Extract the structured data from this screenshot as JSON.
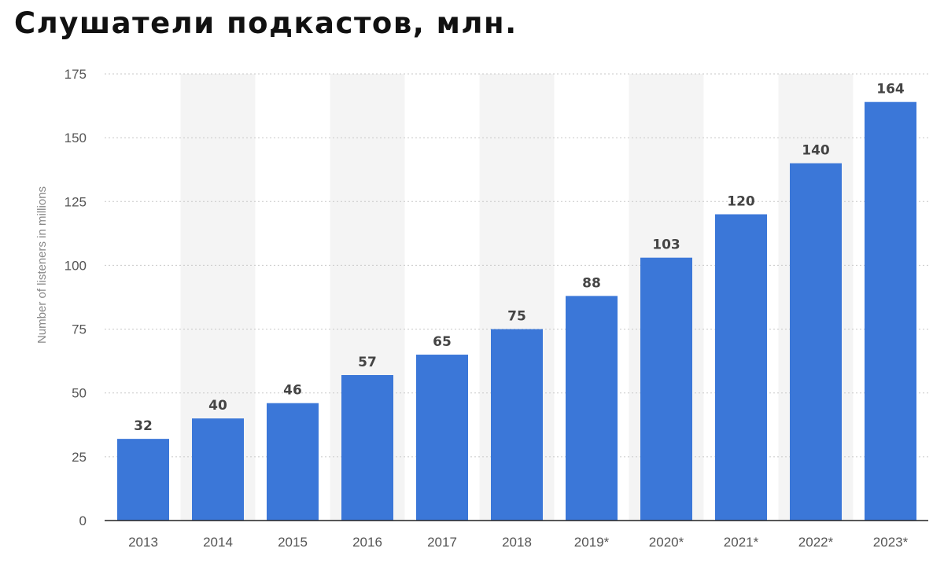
{
  "title": "Слушатели подкастов, млн.",
  "chart_data": {
    "type": "bar",
    "title": "Слушатели подкастов, млн.",
    "xlabel": "",
    "ylabel": "Number of listeners in millions",
    "categories": [
      "2013",
      "2014",
      "2015",
      "2016",
      "2017",
      "2018",
      "2019*",
      "2020*",
      "2021*",
      "2022*",
      "2023*"
    ],
    "values": [
      32,
      40,
      46,
      57,
      65,
      75,
      88,
      103,
      120,
      140,
      164
    ],
    "data_labels": [
      "32",
      "40",
      "46",
      "57",
      "65",
      "75",
      "88",
      "103",
      "120",
      "140",
      "164"
    ],
    "ylim": [
      0,
      175
    ],
    "yticks": [
      0,
      25,
      50,
      75,
      100,
      125,
      150,
      175
    ],
    "grid": true,
    "legend": "none",
    "colors": {
      "bar": "#3b77d8",
      "band": "#f4f4f4",
      "grid": "#c8c8c8",
      "axis": "#222222"
    }
  }
}
